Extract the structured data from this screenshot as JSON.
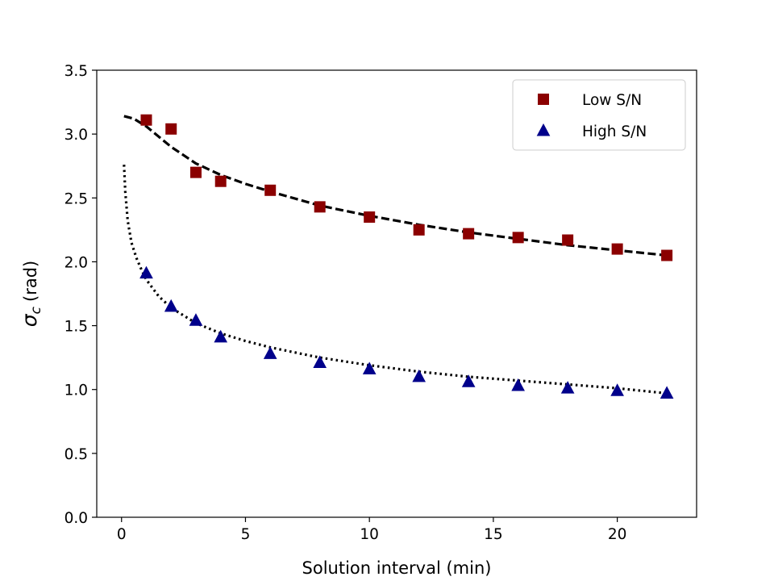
{
  "chart_data": {
    "type": "scatter",
    "title": "",
    "xlabel": "Solution interval (min)",
    "ylabel": {
      "symbol": "σ",
      "subscript": "c",
      "unit": "(rad)"
    },
    "xlim": [
      -1.0,
      23.2
    ],
    "ylim": [
      0,
      3.5
    ],
    "x_ticks": [
      0,
      5,
      10,
      15,
      20
    ],
    "x_tick_labels": [
      "0",
      "5",
      "10",
      "15",
      "20"
    ],
    "y_ticks": [
      0.0,
      0.5,
      1.0,
      1.5,
      2.0,
      2.5,
      3.0,
      3.5
    ],
    "y_tick_labels": [
      "0.0",
      "0.5",
      "1.0",
      "1.5",
      "2.0",
      "2.5",
      "3.0",
      "3.5"
    ],
    "grid": false,
    "legend_position": "top-right",
    "series": [
      {
        "name": "Low S/N",
        "marker": "square",
        "color": "#8b0000",
        "x": [
          1,
          2,
          3,
          4,
          6,
          8,
          10,
          12,
          14,
          16,
          18,
          20,
          22
        ],
        "y": [
          3.11,
          3.04,
          2.7,
          2.63,
          2.56,
          2.43,
          2.35,
          2.25,
          2.22,
          2.19,
          2.17,
          2.1,
          2.05
        ]
      },
      {
        "name": "High S/N",
        "marker": "triangle",
        "color": "#00008b",
        "x": [
          1,
          2,
          3,
          4,
          6,
          8,
          10,
          12,
          14,
          16,
          18,
          20,
          22
        ],
        "y": [
          1.91,
          1.65,
          1.54,
          1.41,
          1.28,
          1.21,
          1.16,
          1.1,
          1.06,
          1.03,
          1.01,
          0.99,
          0.97
        ]
      }
    ],
    "fits": [
      {
        "name": "Low S/N fit",
        "style": "dashed",
        "color": "#000000",
        "x": [
          0.1,
          0.5,
          1,
          1.5,
          2,
          3,
          4,
          5,
          6,
          8,
          10,
          12,
          14,
          16,
          18,
          20,
          22
        ],
        "y": [
          3.14,
          3.12,
          3.06,
          2.98,
          2.9,
          2.77,
          2.68,
          2.61,
          2.55,
          2.44,
          2.36,
          2.29,
          2.23,
          2.18,
          2.13,
          2.09,
          2.05
        ]
      },
      {
        "name": "High S/N fit",
        "style": "dotted",
        "color": "#000000",
        "x": [
          0.1,
          0.15,
          0.25,
          0.4,
          0.6,
          0.8,
          1,
          1.5,
          2,
          3,
          4,
          5,
          6,
          8,
          10,
          12,
          14,
          16,
          18,
          20,
          22
        ],
        "y": [
          2.76,
          2.55,
          2.32,
          2.15,
          2.03,
          1.94,
          1.86,
          1.73,
          1.64,
          1.52,
          1.44,
          1.38,
          1.33,
          1.25,
          1.19,
          1.14,
          1.1,
          1.07,
          1.04,
          1.01,
          0.97
        ]
      }
    ]
  }
}
